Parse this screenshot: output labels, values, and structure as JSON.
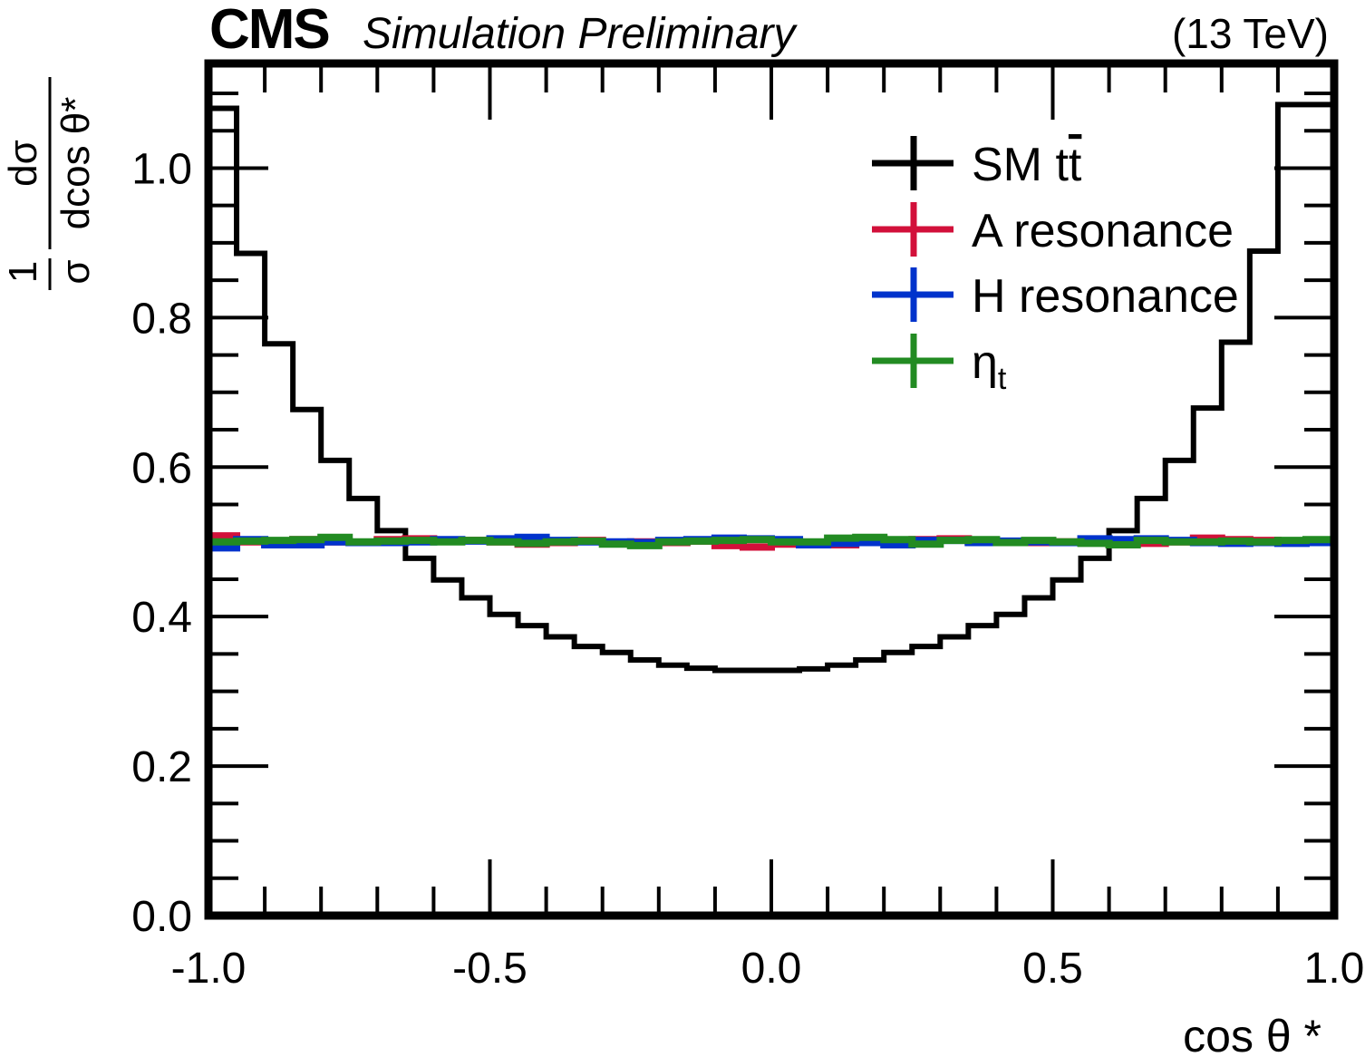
{
  "header": {
    "experiment": "CMS",
    "status": "Simulation Preliminary",
    "energy": "(13 TeV)"
  },
  "chart_data": {
    "type": "line",
    "style": "step-histogram",
    "xlabel": "cos θ *",
    "ylabel_num": "1",
    "ylabel_den": "σ",
    "ylabel_dnum": "dσ",
    "ylabel_dden": "dcos θ*",
    "xlim": [
      -1.0,
      1.0
    ],
    "ylim": [
      0.0,
      1.14
    ],
    "bin_width": 0.05,
    "x_ticks": [
      "-1.0",
      "-0.5",
      "0.0",
      "0.5",
      "1.0"
    ],
    "x_tick_values": [
      -1.0,
      -0.5,
      0.0,
      0.5,
      1.0
    ],
    "y_ticks": [
      "0.0",
      "0.2",
      "0.4",
      "0.6",
      "0.8",
      "1.0"
    ],
    "y_tick_values": [
      0.0,
      0.2,
      0.4,
      0.6,
      0.8,
      1.0
    ],
    "legend_position": "top-right",
    "series": [
      {
        "name": "SM tt̄",
        "label_main": "SM t",
        "label_bar": "t",
        "color": "#000000",
        "values": [
          1.08,
          0.886,
          0.765,
          0.677,
          0.609,
          0.558,
          0.515,
          0.478,
          0.449,
          0.425,
          0.403,
          0.388,
          0.373,
          0.36,
          0.352,
          0.342,
          0.335,
          0.331,
          0.328,
          0.328,
          0.328,
          0.33,
          0.335,
          0.342,
          0.352,
          0.36,
          0.373,
          0.388,
          0.403,
          0.425,
          0.449,
          0.478,
          0.515,
          0.558,
          0.609,
          0.679,
          0.767,
          0.889,
          1.085,
          1.085
        ]
      },
      {
        "name": "A resonance",
        "label_main": "A resonance",
        "color": "#d2103a",
        "values": [
          0.508,
          0.5,
          0.497,
          0.503,
          0.5,
          0.499,
          0.503,
          0.504,
          0.502,
          0.502,
          0.5,
          0.497,
          0.499,
          0.502,
          0.499,
          0.5,
          0.499,
          0.501,
          0.495,
          0.493,
          0.497,
          0.496,
          0.496,
          0.504,
          0.501,
          0.503,
          0.504,
          0.5,
          0.499,
          0.499,
          0.5,
          0.499,
          0.497,
          0.498,
          0.5,
          0.505,
          0.503,
          0.502,
          0.5,
          0.499
        ]
      },
      {
        "name": "H resonance",
        "label_main": "H resonance",
        "color": "#0033cc",
        "values": [
          0.492,
          0.503,
          0.496,
          0.496,
          0.5,
          0.499,
          0.499,
          0.5,
          0.503,
          0.501,
          0.504,
          0.506,
          0.502,
          0.5,
          0.5,
          0.499,
          0.502,
          0.503,
          0.505,
          0.504,
          0.503,
          0.496,
          0.498,
          0.499,
          0.496,
          0.502,
          0.502,
          0.499,
          0.501,
          0.5,
          0.499,
          0.504,
          0.503,
          0.504,
          0.502,
          0.499,
          0.498,
          0.499,
          0.498,
          0.499
        ]
      },
      {
        "name": "ηt",
        "label_main": "η",
        "label_sub": "t",
        "color": "#228b22",
        "values": [
          0.5,
          0.501,
          0.502,
          0.503,
          0.506,
          0.5,
          0.501,
          0.502,
          0.5,
          0.502,
          0.5,
          0.498,
          0.5,
          0.501,
          0.497,
          0.495,
          0.5,
          0.501,
          0.502,
          0.503,
          0.5,
          0.5,
          0.505,
          0.506,
          0.503,
          0.497,
          0.502,
          0.503,
          0.499,
          0.502,
          0.5,
          0.498,
          0.496,
          0.502,
          0.5,
          0.5,
          0.501,
          0.5,
          0.502,
          0.503
        ]
      }
    ]
  }
}
